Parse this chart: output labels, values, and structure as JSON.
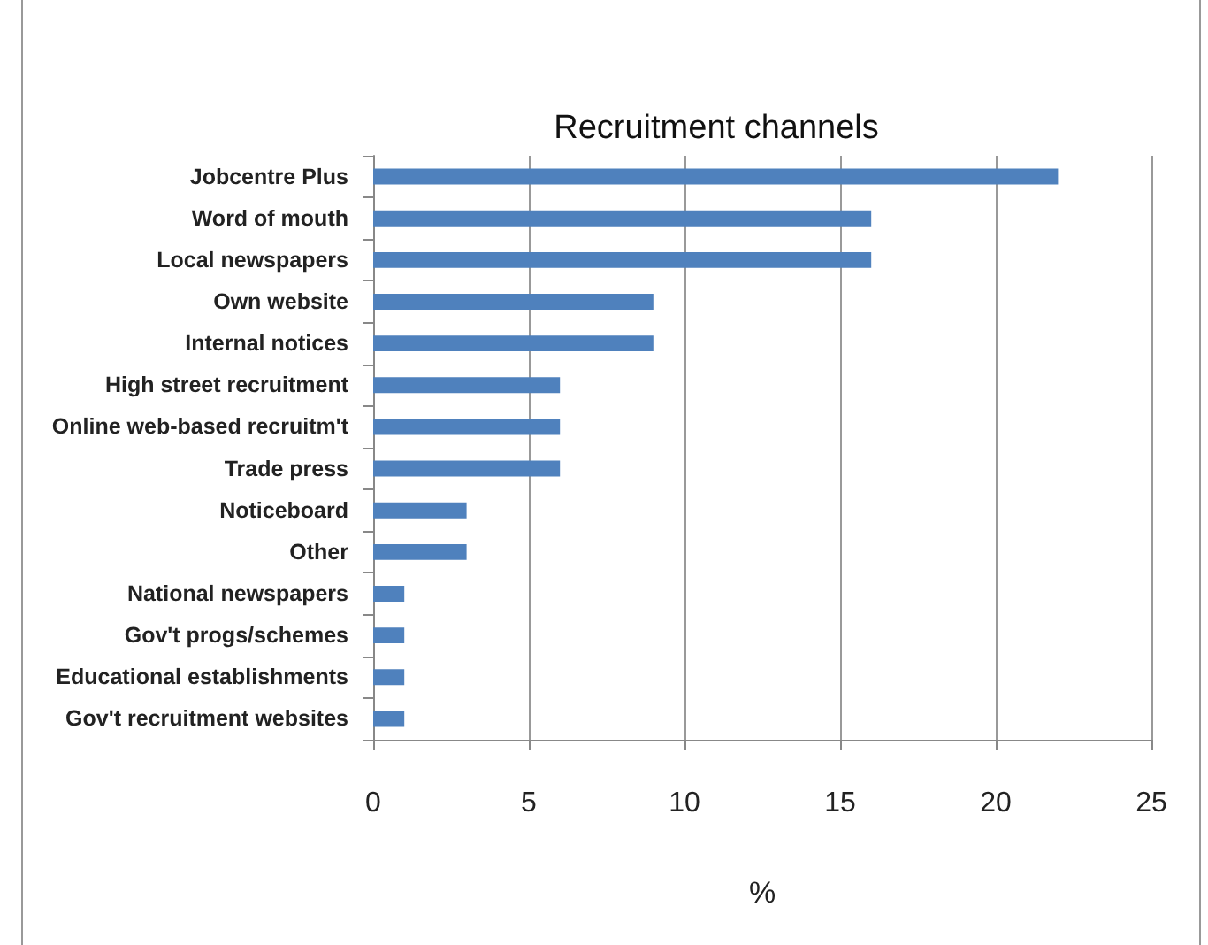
{
  "chart_data": {
    "type": "bar",
    "orientation": "horizontal",
    "title": "Recruitment channels",
    "xlabel": "%",
    "categories": [
      "Jobcentre Plus",
      "Word of mouth",
      "Local newspapers",
      "Own website",
      "Internal notices",
      "High street recruitment",
      "Online web-based recruitm't",
      "Trade press",
      "Noticeboard",
      "Other",
      "National newspapers",
      "Gov't progs/schemes",
      "Educational establishments",
      "Gov't recruitment websites"
    ],
    "values": [
      22,
      16,
      16,
      9,
      9,
      6,
      6,
      6,
      3,
      3,
      1,
      1,
      1,
      1
    ],
    "color": "#4f81bd",
    "xlim": [
      0,
      25
    ],
    "xticks": [
      0,
      5,
      10,
      15,
      20,
      25
    ],
    "grid": "x"
  }
}
